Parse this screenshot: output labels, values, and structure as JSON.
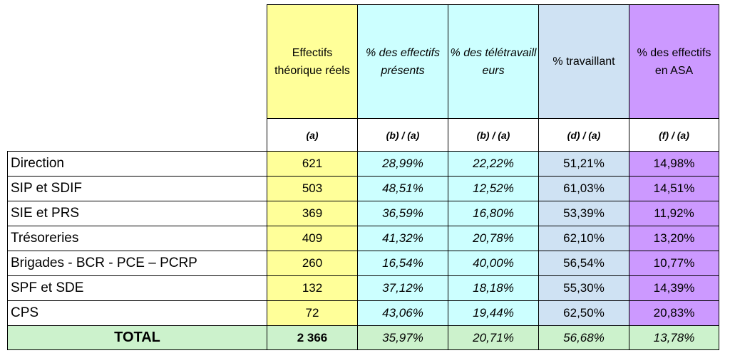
{
  "headers": [
    "Effectifs théorique réels",
    "% des effectifs présents",
    "% des télétravailleurs",
    "% travaillant",
    "% des effectifs en ASA"
  ],
  "subheaders": [
    "(a)",
    "(b) / (a)",
    "(b) / (a)",
    "(d) / (a)",
    "(f) / (a)"
  ],
  "rows": [
    {
      "label": "Direction",
      "effectifs": "621",
      "presents": "28,99%",
      "teletravail": "22,22%",
      "travaillant": "51,21%",
      "asa": "14,98%"
    },
    {
      "label": "SIP et SDIF",
      "effectifs": "503",
      "presents": "48,51%",
      "teletravail": "12,52%",
      "travaillant": "61,03%",
      "asa": "14,51%"
    },
    {
      "label": "SIE et PRS",
      "effectifs": "369",
      "presents": "36,59%",
      "teletravail": "16,80%",
      "travaillant": "53,39%",
      "asa": "11,92%"
    },
    {
      "label": "Trésoreries",
      "effectifs": "409",
      "presents": "41,32%",
      "teletravail": "20,78%",
      "travaillant": "62,10%",
      "asa": "13,20%"
    },
    {
      "label": "Brigades - BCR - PCE – PCRP",
      "effectifs": "260",
      "presents": "16,54%",
      "teletravail": "40,00%",
      "travaillant": "56,54%",
      "asa": "10,77%"
    },
    {
      "label": "SPF et SDE",
      "effectifs": "132",
      "presents": "37,12%",
      "teletravail": "18,18%",
      "travaillant": "55,30%",
      "asa": "14,39%"
    },
    {
      "label": "CPS",
      "effectifs": "72",
      "presents": "43,06%",
      "teletravail": "19,44%",
      "travaillant": "62,50%",
      "asa": "20,83%"
    }
  ],
  "total": {
    "label": "TOTAL",
    "effectifs": "2 366",
    "presents": "35,97%",
    "teletravail": "20,71%",
    "travaillant": "56,68%",
    "asa": "13,78%"
  }
}
